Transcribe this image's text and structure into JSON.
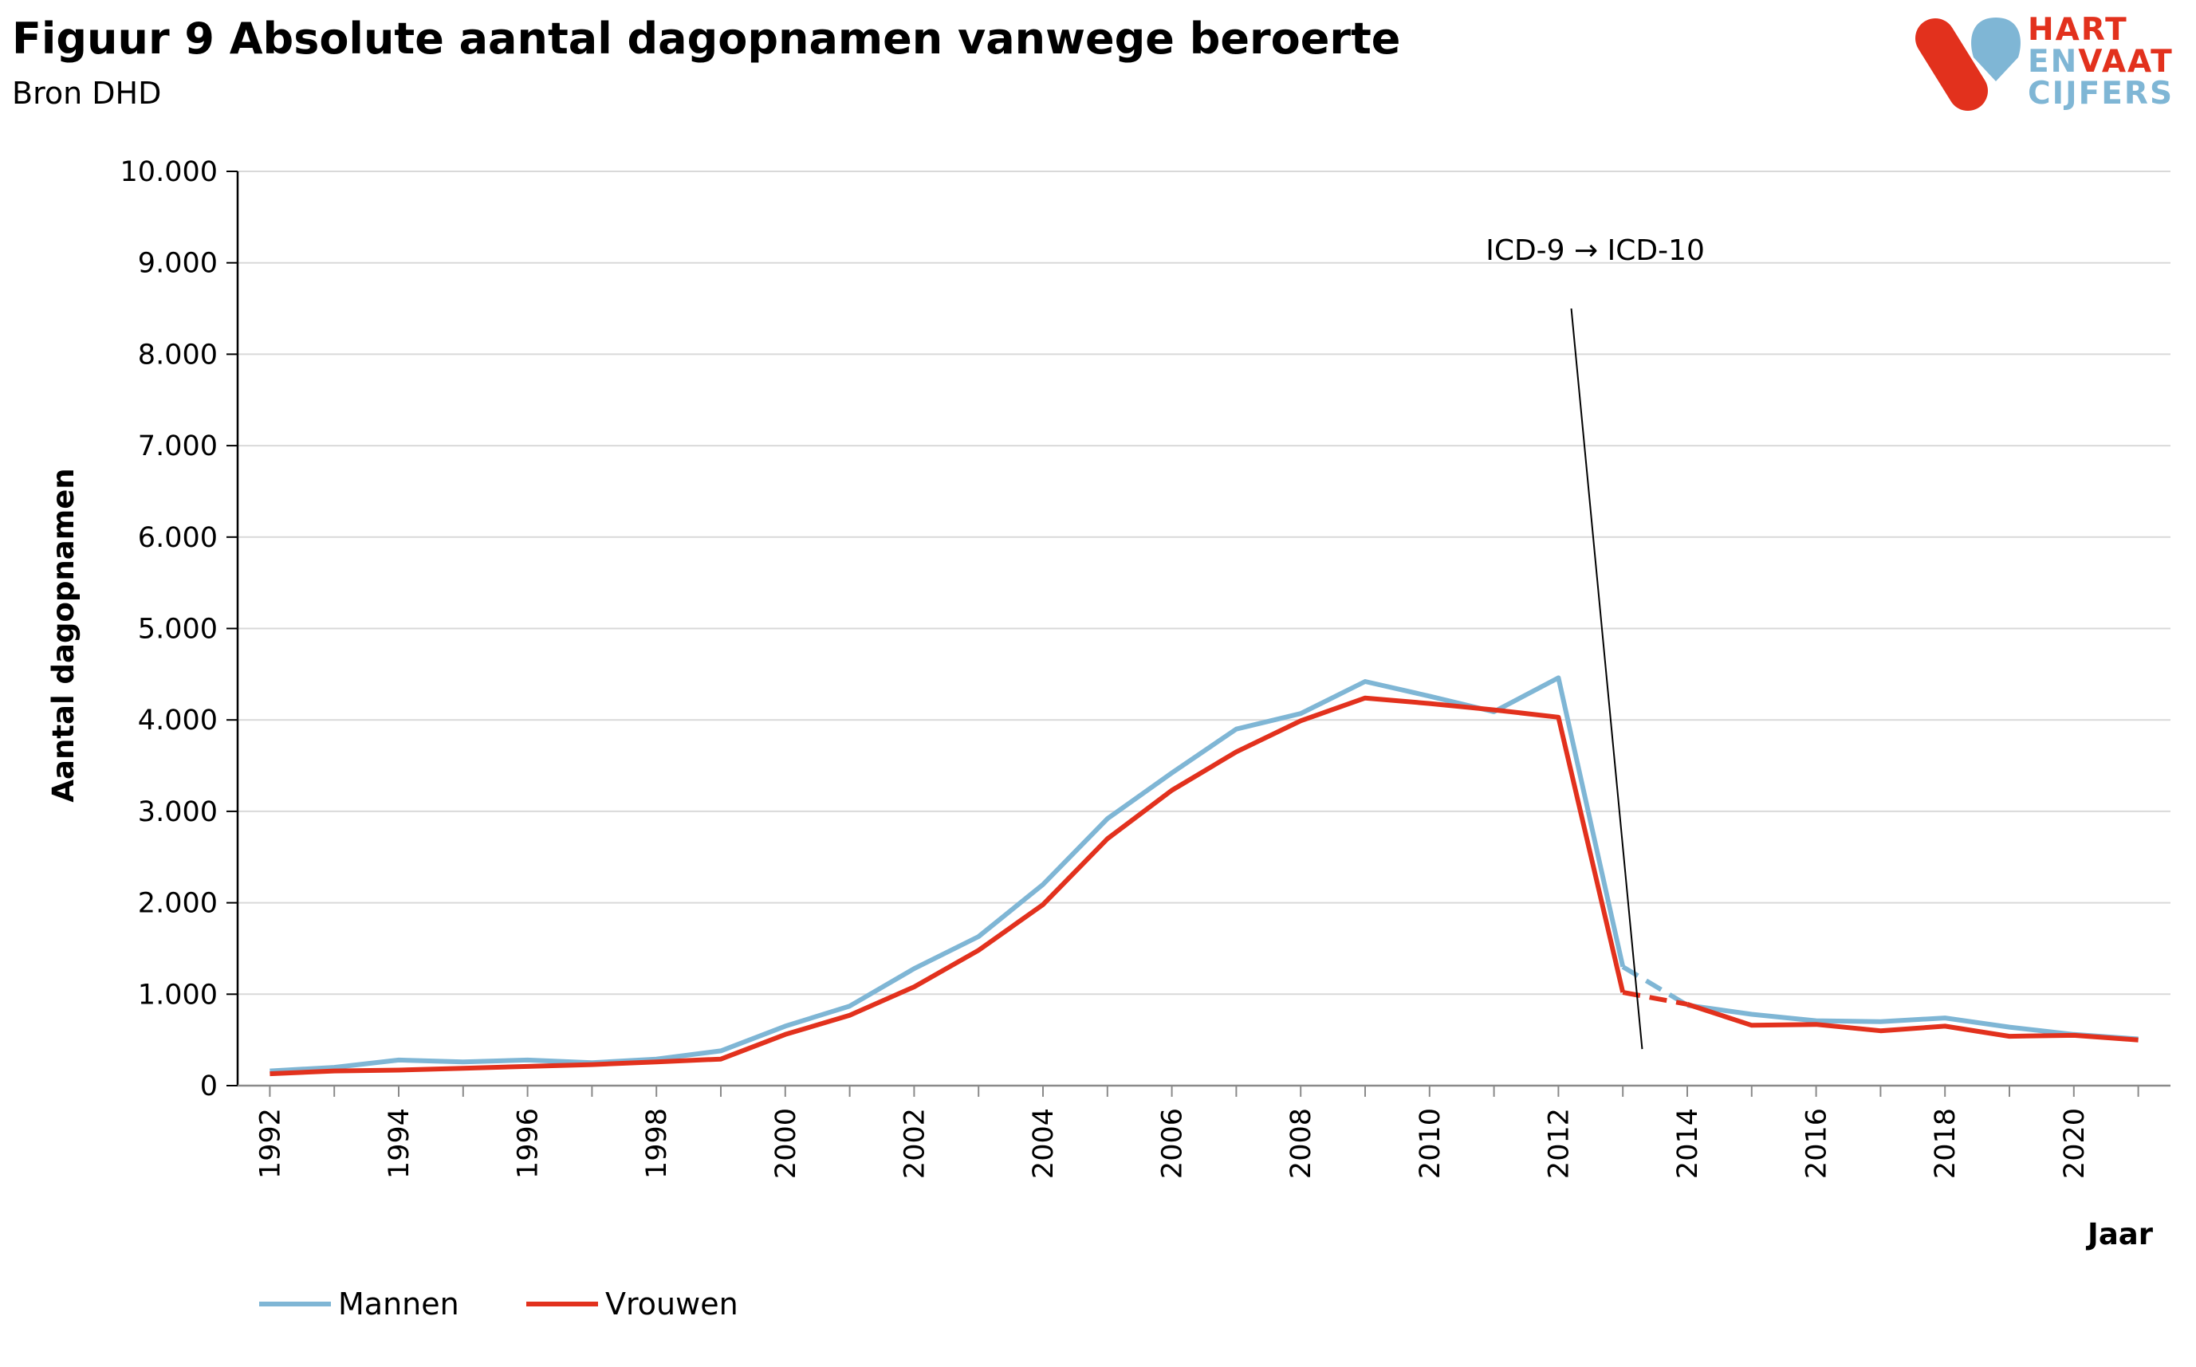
{
  "title": "Figuur 9 Absolute aantal dagopnamen vanwege beroerte",
  "subtitle": "Bron DHD",
  "logo": {
    "lines": [
      {
        "text": "HART",
        "color": "#e2311d"
      },
      {
        "text": "EN",
        "color": "#7fb6d5",
        "text2": "VAAT",
        "color2": "#e2311d"
      },
      {
        "text": "CIJFERS",
        "color": "#7fb6d5"
      }
    ]
  },
  "colors": {
    "mannen": "#7fb6d5",
    "vrouwen": "#e2311d",
    "grid": "#d9d9d9",
    "axis": "#000000"
  },
  "chart_data": {
    "type": "line",
    "title": "Figuur 9 Absolute aantal dagopnamen vanwege beroerte",
    "subtitle": "Bron DHD",
    "xlabel": "Jaar",
    "ylabel": "Aantal dagopnamen",
    "ylim": [
      0,
      10000
    ],
    "yticks": [
      0,
      1000,
      2000,
      3000,
      4000,
      5000,
      6000,
      7000,
      8000,
      9000,
      10000
    ],
    "ytick_labels": [
      "0",
      "1.000",
      "2.000",
      "3.000",
      "4.000",
      "5.000",
      "6.000",
      "7.000",
      "8.000",
      "9.000",
      "10.000"
    ],
    "xtick_labels": [
      "1992",
      "1994",
      "1996",
      "1998",
      "2000",
      "2002",
      "2004",
      "2006",
      "2008",
      "2010",
      "2012",
      "2014",
      "2016",
      "2018",
      "2020"
    ],
    "grid": true,
    "legend_position": "bottom-left",
    "x": [
      1992,
      1993,
      1994,
      1995,
      1996,
      1997,
      1998,
      1999,
      2000,
      2001,
      2002,
      2003,
      2004,
      2005,
      2006,
      2007,
      2008,
      2009,
      2010,
      2011,
      2012,
      2013,
      2014,
      2015,
      2016,
      2017,
      2018,
      2019,
      2020,
      2021
    ],
    "series": [
      {
        "name": "Mannen",
        "color": "#7fb6d5",
        "values": [
          160,
          200,
          280,
          260,
          280,
          250,
          290,
          380,
          650,
          870,
          1280,
          1630,
          2200,
          2920,
          3420,
          3900,
          4070,
          4420,
          4260,
          4090,
          4460,
          1300,
          880,
          780,
          710,
          700,
          740,
          640,
          560,
          510
        ],
        "dashed_segment": [
          2013,
          2014
        ]
      },
      {
        "name": "Vrouwen",
        "color": "#e2311d",
        "values": [
          130,
          160,
          170,
          190,
          210,
          230,
          260,
          290,
          560,
          770,
          1080,
          1480,
          1980,
          2700,
          3230,
          3650,
          3990,
          4240,
          4180,
          4110,
          4030,
          1020,
          890,
          660,
          670,
          600,
          650,
          540,
          550,
          500
        ],
        "dashed_segment": [
          2013,
          2014
        ]
      }
    ],
    "annotations": [
      {
        "text": "ICD-9 → ICD-10",
        "x_from": 2012.2,
        "x_to": 2013.3,
        "y_from": 8500,
        "y_to": 400
      }
    ]
  }
}
